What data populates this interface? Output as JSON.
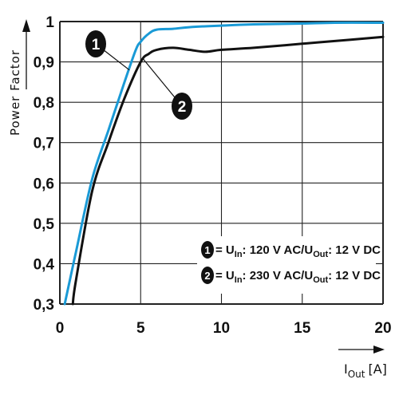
{
  "chart_data": {
    "type": "line",
    "xlabel": "I",
    "xlabel_sub": "Out",
    "xlabel_unit": "[A]",
    "ylabel": "Power Factor",
    "xlim": [
      0,
      20
    ],
    "ylim": [
      0.3,
      1.0
    ],
    "x_ticks": [
      "0",
      "5",
      "10",
      "15",
      "20"
    ],
    "y_ticks": [
      "0,3",
      "0,4",
      "0,5",
      "0,6",
      "0,7",
      "0,8",
      "0,9",
      "1"
    ],
    "grid": true,
    "series": [
      {
        "name": "1",
        "color": "#1a9ad6",
        "points": [
          [
            0.3,
            0.3
          ],
          [
            1,
            0.43
          ],
          [
            2,
            0.61
          ],
          [
            3,
            0.73
          ],
          [
            4,
            0.85
          ],
          [
            4.7,
            0.93
          ],
          [
            5,
            0.95
          ],
          [
            5.5,
            0.97
          ],
          [
            6,
            0.98
          ],
          [
            7,
            0.982
          ],
          [
            8,
            0.986
          ],
          [
            10,
            0.99
          ],
          [
            12,
            0.993
          ],
          [
            15,
            0.995
          ],
          [
            17,
            0.997
          ],
          [
            20,
            0.997
          ]
        ]
      },
      {
        "name": "2",
        "color": "#111111",
        "points": [
          [
            0.8,
            0.3
          ],
          [
            1,
            0.36
          ],
          [
            2,
            0.58
          ],
          [
            3,
            0.7
          ],
          [
            4,
            0.81
          ],
          [
            5,
            0.9
          ],
          [
            5.5,
            0.92
          ],
          [
            6,
            0.93
          ],
          [
            7,
            0.935
          ],
          [
            8,
            0.93
          ],
          [
            9,
            0.925
          ],
          [
            10,
            0.93
          ],
          [
            12,
            0.935
          ],
          [
            15,
            0.945
          ],
          [
            18,
            0.955
          ],
          [
            20,
            0.962
          ]
        ]
      }
    ],
    "callouts": [
      {
        "label": "1",
        "target": [
          4.3,
          0.88
        ]
      },
      {
        "label": "2",
        "target": [
          5.1,
          0.91
        ]
      }
    ],
    "legend": [
      {
        "marker": "1",
        "prefix": "= U",
        "sub1": "In",
        "middle": ": 120 V AC/U",
        "sub2": "Out",
        "suffix": ": 12 V DC"
      },
      {
        "marker": "2",
        "prefix": "= U",
        "sub1": "In",
        "middle": ": 230 V AC/U",
        "sub2": "Out",
        "suffix": ": 12 V DC"
      }
    ],
    "legend_position": "bottom-right"
  }
}
